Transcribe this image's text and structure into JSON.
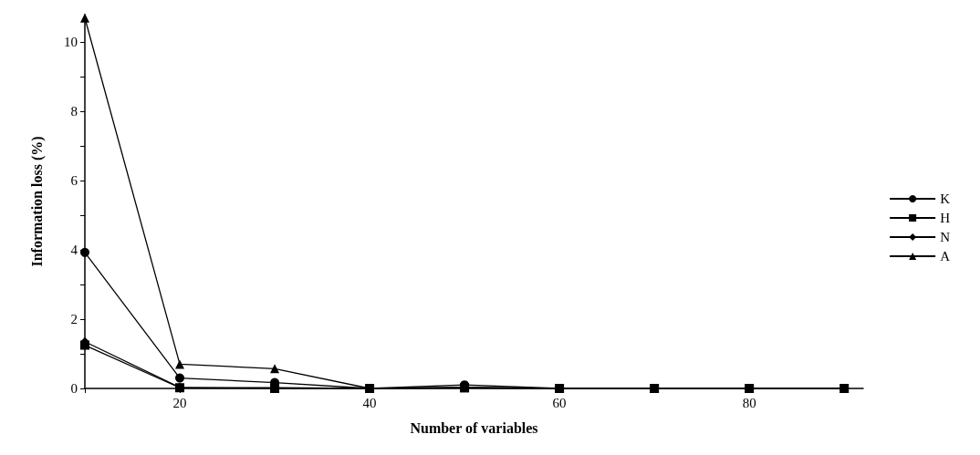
{
  "chart_data": {
    "type": "line",
    "xlabel": "Number of variables",
    "ylabel": "Information loss (%)",
    "x": [
      10,
      20,
      30,
      40,
      50,
      60,
      70,
      80,
      90
    ],
    "xlim": [
      10,
      92
    ],
    "xticks": [
      {
        "value": 10,
        "label": null
      },
      20,
      40,
      60,
      80
    ],
    "ylim": [
      0,
      10.8
    ],
    "yticks": [
      0,
      {
        "value": 1,
        "label": null
      },
      2,
      {
        "value": 3,
        "label": null
      },
      4,
      {
        "value": 5,
        "label": null
      },
      6,
      {
        "value": 7,
        "label": null
      },
      8,
      {
        "value": 9,
        "label": null
      },
      10
    ],
    "grid": false,
    "legend": "right",
    "line_style": "solid",
    "series": [
      {
        "name": "K",
        "color": "#000000",
        "marker": "circle",
        "values": [
          3.93,
          0.3,
          0.17,
          0,
          0.1,
          0,
          0,
          0,
          0
        ]
      },
      {
        "name": "H",
        "color": "#000000",
        "marker": "square",
        "values": [
          1.25,
          0.02,
          0,
          0,
          0.02,
          0,
          0,
          0,
          0
        ]
      },
      {
        "name": "N",
        "color": "#000000",
        "marker": "diamond",
        "values": [
          1.35,
          0.03,
          0.02,
          0,
          0.03,
          0,
          0,
          0,
          0
        ]
      },
      {
        "name": "A",
        "color": "#000000",
        "marker": "triangle",
        "values": [
          10.7,
          0.7,
          0.57,
          0,
          0.02,
          0,
          0,
          0,
          0
        ]
      }
    ]
  }
}
